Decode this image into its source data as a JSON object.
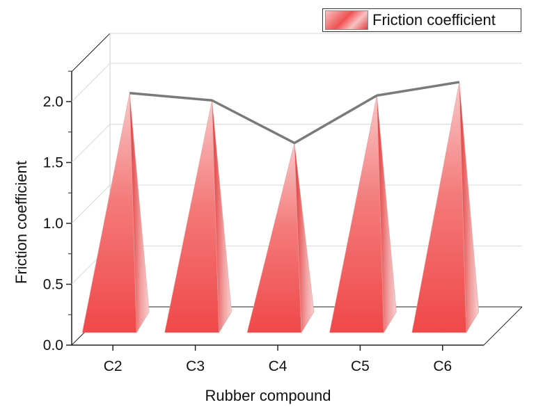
{
  "chart_data": {
    "type": "bar",
    "style": "3d-pyramid-with-line",
    "categories": [
      "C2",
      "C3",
      "C4",
      "C5",
      "C6"
    ],
    "series": [
      {
        "name": "Friction coefficient",
        "values": [
          2.07,
          2.01,
          1.66,
          2.05,
          2.16
        ]
      }
    ],
    "xlabel": "Rubber compound",
    "ylabel": "Friction coefficient",
    "ylim": [
      0.0,
      2.0
    ],
    "yticks": [
      "0.0",
      "0.5",
      "1.0",
      "1.5",
      "2.0"
    ],
    "grid": true,
    "legend_position": "top-right",
    "colors": {
      "bar": "#f05050",
      "bar_light": "#f7c2c2",
      "line": "#7a7a7a",
      "grid": "#d9d9d9"
    }
  }
}
